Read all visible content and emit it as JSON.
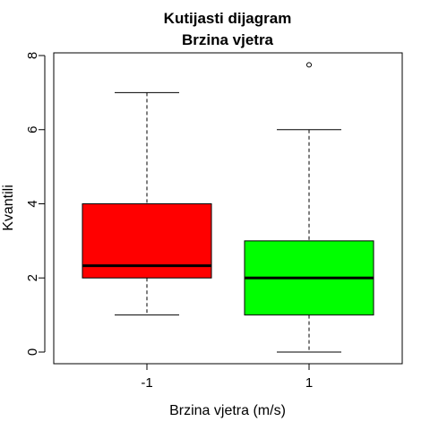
{
  "chart_data": {
    "type": "boxplot",
    "title": "Kutijasti dijagram",
    "subtitle": "Brzina vjetra",
    "xlabel": "Brzina vjetra (m/s)",
    "ylabel": "Kvantili",
    "ylim": [
      0,
      8
    ],
    "yticks": [
      0,
      2,
      4,
      6,
      8
    ],
    "grid": false,
    "categories": [
      "-1",
      "1"
    ],
    "boxes": [
      {
        "category": "-1",
        "min": 1,
        "q1": 2,
        "median": 2.33,
        "q3": 4,
        "max": 7,
        "outliers": [],
        "color": "#ff0000"
      },
      {
        "category": "1",
        "min": 0,
        "q1": 1,
        "median": 2,
        "q3": 3,
        "max": 6,
        "outliers": [
          7.75
        ],
        "color": "#00ff00"
      }
    ]
  }
}
